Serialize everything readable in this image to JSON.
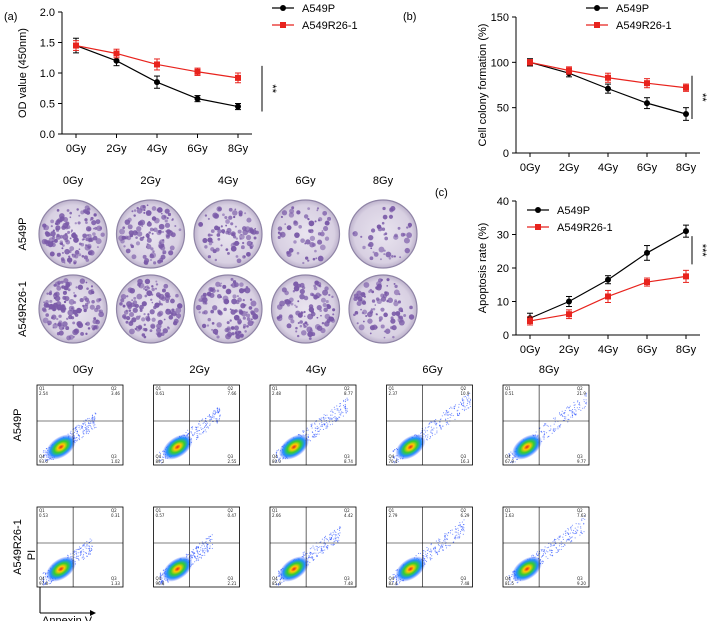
{
  "panels": {
    "a": "(a)",
    "b": "(b)",
    "c": "(c)"
  },
  "dose_labels": [
    "0Gy",
    "2Gy",
    "4Gy",
    "6Gy",
    "8Gy"
  ],
  "colors": {
    "parental": "#000000",
    "resistant": "#e8231d",
    "dish": "#7a5aa8",
    "dish_bg": "#dcd6e6"
  },
  "colony_images": {
    "row_labels": [
      "A549P",
      "A549R26-1"
    ]
  },
  "flow": {
    "row_labels": [
      "A549P",
      "A549R26-1"
    ],
    "x_axis_label": "Annexin V",
    "y_axis_label": "PI",
    "quadrant_labels": [
      "Q1",
      "Q2",
      "Q3",
      "Q4"
    ],
    "quadrant_values": [
      [
        [
          "2.54",
          "3.46",
          "1.02",
          "93.0"
        ],
        [
          "0.61",
          "7.66",
          "2.55",
          "89.2"
        ],
        [
          "2.48",
          "8.77",
          "8.74",
          "80.0"
        ],
        [
          "2.37",
          "10.9",
          "16.3",
          "70.4"
        ],
        [
          "0.51",
          "21.9",
          "9.77",
          "67.8"
        ]
      ],
      [
        [
          "0.53",
          "0.31",
          "1.33",
          "97.8"
        ],
        [
          "0.57",
          "0.47",
          "2.21",
          "96.8"
        ],
        [
          "2.66",
          "4.42",
          "7.48",
          "85.4"
        ],
        [
          "2.79",
          "6.29",
          "7.48",
          "83.4"
        ],
        [
          "1.63",
          "7.63",
          "9.20",
          "81.5"
        ]
      ]
    ]
  },
  "chart_data": [
    {
      "id": "a",
      "type": "line",
      "title": "",
      "categories": [
        "0Gy",
        "2Gy",
        "4Gy",
        "6Gy",
        "8Gy"
      ],
      "ylabel": "OD value (450nm)",
      "xlabel": "",
      "ylim": [
        0,
        2.0
      ],
      "yticks": [
        0.0,
        0.5,
        1.0,
        1.5,
        2.0
      ],
      "ytick_labels": [
        "0.0",
        "0.5",
        "1.0",
        "1.5",
        "2.0"
      ],
      "legend_position": "top-right",
      "significance": "**",
      "series": [
        {
          "name": "A549P",
          "values": [
            1.45,
            1.2,
            0.85,
            0.58,
            0.45
          ],
          "errors": [
            0.12,
            0.08,
            0.1,
            0.05,
            0.05
          ],
          "marker": "circle"
        },
        {
          "name": "A549R26-1",
          "values": [
            1.45,
            1.32,
            1.14,
            1.02,
            0.92
          ],
          "errors": [
            0.08,
            0.07,
            0.09,
            0.06,
            0.08
          ],
          "marker": "square"
        }
      ]
    },
    {
      "id": "b",
      "type": "line",
      "title": "",
      "categories": [
        "0Gy",
        "2Gy",
        "4Gy",
        "6Gy",
        "8Gy"
      ],
      "ylabel": "Cell colony formation (%)",
      "xlabel": "",
      "ylim": [
        0,
        150
      ],
      "yticks": [
        0,
        50,
        100,
        150
      ],
      "ytick_labels": [
        "0",
        "50",
        "100",
        "150"
      ],
      "legend_position": "top-right",
      "significance": "**",
      "series": [
        {
          "name": "A549P",
          "values": [
            100,
            88,
            71,
            55,
            43
          ],
          "errors": [
            4,
            4,
            5,
            6,
            7
          ],
          "marker": "circle"
        },
        {
          "name": "A549R26-1",
          "values": [
            100,
            91,
            83,
            77,
            72
          ],
          "errors": [
            3,
            4,
            5,
            5,
            4
          ],
          "marker": "square"
        }
      ]
    },
    {
      "id": "c",
      "type": "line",
      "title": "",
      "categories": [
        "0Gy",
        "2Gy",
        "4Gy",
        "6Gy",
        "8Gy"
      ],
      "ylabel": "Apoptosis rate (%)",
      "xlabel": "",
      "ylim": [
        0,
        40
      ],
      "yticks": [
        0,
        10,
        20,
        30,
        40
      ],
      "ytick_labels": [
        "0",
        "10",
        "20",
        "30",
        "40"
      ],
      "legend_position": "top-left",
      "significance": "***",
      "series": [
        {
          "name": "A549P",
          "values": [
            5,
            10,
            16.5,
            24.5,
            31
          ],
          "errors": [
            1.5,
            1.5,
            1.2,
            2.2,
            1.8
          ],
          "marker": "circle"
        },
        {
          "name": "A549R26-1",
          "values": [
            4.2,
            6.2,
            11.5,
            15.8,
            17.5
          ],
          "errors": [
            1.2,
            1.3,
            1.8,
            1.2,
            1.8
          ],
          "marker": "square"
        }
      ]
    }
  ]
}
